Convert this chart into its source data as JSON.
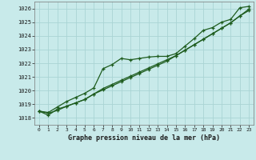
{
  "title": "Graphe pression niveau de la mer (hPa)",
  "bg_color": "#c8eaea",
  "plot_bg_color": "#c8eaea",
  "grid_color": "#aad4d4",
  "line_color": "#1e5c1e",
  "xlim": [
    -0.5,
    23.5
  ],
  "ylim": [
    1017.5,
    1026.5
  ],
  "yticks": [
    1018,
    1019,
    1020,
    1021,
    1022,
    1023,
    1024,
    1025,
    1026
  ],
  "xticks": [
    0,
    1,
    2,
    3,
    4,
    5,
    6,
    7,
    8,
    9,
    10,
    11,
    12,
    13,
    14,
    15,
    16,
    17,
    18,
    19,
    20,
    21,
    22,
    23
  ],
  "series1_x": [
    0,
    1,
    2,
    3,
    4,
    5,
    6,
    7,
    8,
    9,
    10,
    11,
    12,
    13,
    14,
    15,
    16,
    17,
    18,
    19,
    20,
    21,
    22,
    23
  ],
  "series1_y": [
    1018.5,
    1018.4,
    1018.8,
    1019.2,
    1019.5,
    1019.8,
    1020.2,
    1021.6,
    1021.9,
    1022.35,
    1022.25,
    1022.35,
    1022.45,
    1022.5,
    1022.5,
    1022.7,
    1023.25,
    1023.8,
    1024.4,
    1024.6,
    1025.0,
    1025.2,
    1026.05,
    1026.15
  ],
  "series2_x": [
    0,
    1,
    2,
    3,
    4,
    5,
    6,
    7,
    8,
    9,
    10,
    11,
    12,
    13,
    14,
    15,
    16,
    17,
    18,
    19,
    20,
    21,
    22,
    23
  ],
  "series2_y": [
    1018.5,
    1018.2,
    1018.65,
    1018.85,
    1019.1,
    1019.35,
    1019.75,
    1020.05,
    1020.35,
    1020.65,
    1020.95,
    1021.25,
    1021.55,
    1021.85,
    1022.15,
    1022.55,
    1022.95,
    1023.35,
    1023.75,
    1024.15,
    1024.55,
    1024.95,
    1025.45,
    1025.95
  ],
  "series3_x": [
    0,
    1,
    2,
    3,
    4,
    5,
    6,
    7,
    8,
    9,
    10,
    11,
    12,
    13,
    14,
    15,
    16,
    17,
    18,
    19,
    20,
    21,
    22,
    23
  ],
  "series3_y": [
    1018.5,
    1018.35,
    1018.55,
    1018.85,
    1019.1,
    1019.35,
    1019.75,
    1020.15,
    1020.45,
    1020.75,
    1021.05,
    1021.35,
    1021.65,
    1021.95,
    1022.25,
    1022.55,
    1022.95,
    1023.35,
    1023.75,
    1024.15,
    1024.55,
    1024.95,
    1025.45,
    1025.85
  ]
}
